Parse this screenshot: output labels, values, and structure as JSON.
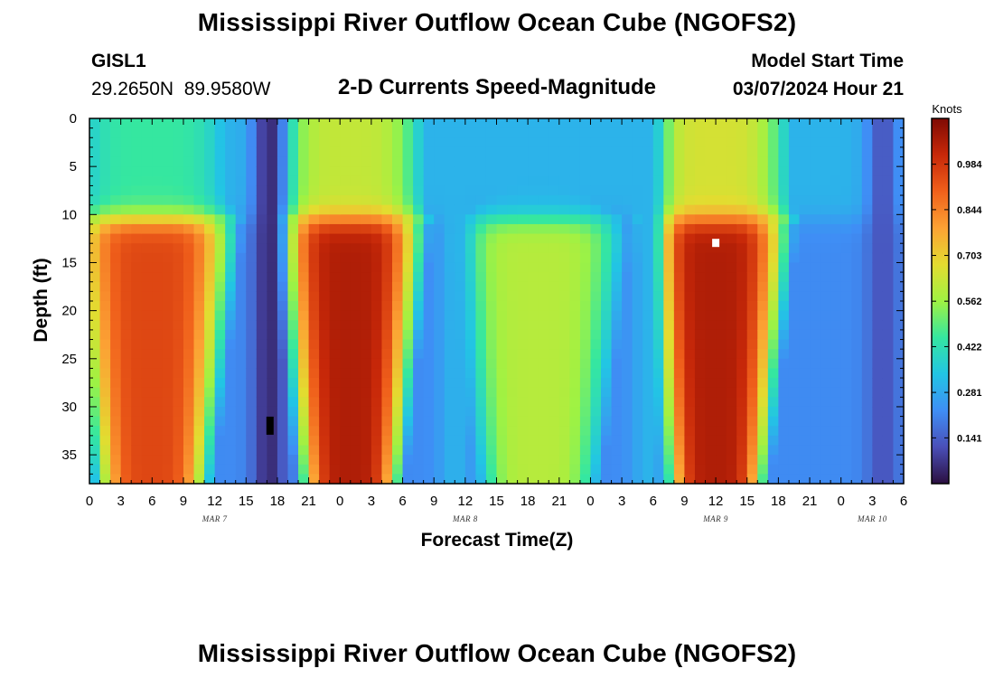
{
  "header": {
    "title": "Mississippi River Outflow Ocean Cube (NGOFS2)",
    "station": "GISL1",
    "coordinates": "29.2650N  89.9580W",
    "subtitle": "2-D Currents Speed-Magnitude",
    "start_label": "Model Start Time",
    "start_value": "03/07/2024 Hour 21"
  },
  "footer": {
    "title": "Mississippi River Outflow Ocean Cube (NGOFS2)"
  },
  "chart_data": {
    "type": "heatmap",
    "title": "2-D Currents Speed-Magnitude",
    "xlabel": "Forecast Time(Z)",
    "ylabel": "Depth (ft)",
    "colorbar_label": "Knots",
    "x_range_hours": [
      0,
      78
    ],
    "x_ticks": [
      "0",
      "3",
      "6",
      "9",
      "12",
      "15",
      "18",
      "21",
      "0",
      "3",
      "6",
      "9",
      "12",
      "15",
      "18",
      "21",
      "0",
      "3",
      "6",
      "9",
      "12",
      "15",
      "18",
      "21",
      "0",
      "3",
      "6"
    ],
    "date_labels": [
      {
        "label": "MAR 7",
        "at_hour": 12
      },
      {
        "label": "MAR 8",
        "at_hour": 36
      },
      {
        "label": "MAR 9",
        "at_hour": 60
      },
      {
        "label": "MAR 10",
        "at_hour": 75
      }
    ],
    "y_range_ft": [
      0,
      38
    ],
    "y_ticks": [
      0,
      5,
      10,
      15,
      20,
      25,
      30,
      35
    ],
    "colorbar_ticks": [
      0.141,
      0.281,
      0.422,
      0.562,
      0.703,
      0.844,
      0.984
    ],
    "value_range": [
      0.0,
      1.125
    ],
    "colormap": [
      "#2b0f3f",
      "#4a4fb8",
      "#3f8ef5",
      "#22c5e4",
      "#35e7a0",
      "#9ff243",
      "#e3dc30",
      "#fca234",
      "#f0601b",
      "#c72809",
      "#7f0a03"
    ],
    "field_model": {
      "upper_layer_depth_ft": 9,
      "lower_layer_depth_ft": 12,
      "peaks": [
        {
          "hour": 6,
          "width_hours": 8,
          "surface": 0.45,
          "bottom": 0.95
        },
        {
          "hour": 25,
          "width_hours": 7,
          "surface": 0.62,
          "bottom": 1.05
        },
        {
          "hour": 43,
          "width_hours": 9,
          "surface": 0.3,
          "bottom": 0.6
        },
        {
          "hour": 60,
          "width_hours": 7,
          "surface": 0.65,
          "bottom": 1.05
        }
      ],
      "minima": [
        {
          "hour": 17.2,
          "value": 0.05
        },
        {
          "hour": 35.0,
          "value": 0.3
        },
        {
          "hour": 53.5,
          "value": 0.3
        },
        {
          "hour": 76.0,
          "value": 0.12
        }
      ],
      "missing_cells": [
        {
          "hour": 17.3,
          "depth_ft": 31.5,
          "color": "#000000"
        },
        {
          "hour": 60.0,
          "depth_ft": 13.0,
          "color": "#ffffff"
        }
      ]
    }
  }
}
